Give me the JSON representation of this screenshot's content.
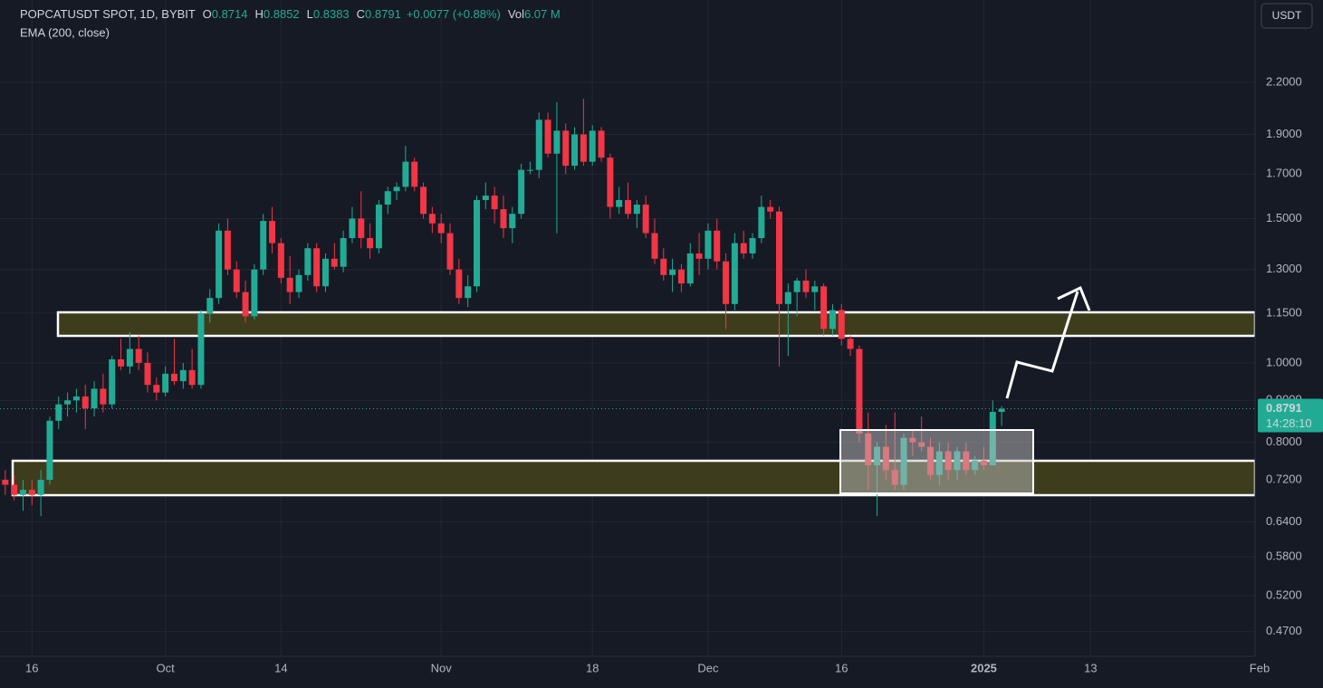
{
  "chart_data": {
    "type": "candlestick",
    "symbol": "POPCATUSDT SPOT, 1D, BYBIT",
    "ohlc_labels": [
      "O",
      "H",
      "L",
      "C"
    ],
    "change_label": "+0.0077 (+0.88%)",
    "volume_label": "Vol",
    "volume": "6.07 M",
    "indicator": "EMA (200, close)",
    "currency": "USDT",
    "countdown": "14:28:10",
    "up_color": "#22ab94",
    "down_color": "#f23645",
    "log_scale": true,
    "grid": true,
    "x": [
      "Sep 13",
      "Sep 14",
      "Sep 15",
      "Sep 16",
      "Sep 17",
      "Sep 18",
      "Sep 19",
      "Sep 20",
      "Sep 21",
      "Sep 22",
      "Sep 23",
      "Sep 24",
      "Sep 25",
      "Sep 26",
      "Sep 27",
      "Sep 28",
      "Sep 29",
      "Sep 30",
      "Oct 1",
      "Oct 2",
      "Oct 3",
      "Oct 4",
      "Oct 5",
      "Oct 6",
      "Oct 7",
      "Oct 8",
      "Oct 9",
      "Oct 10",
      "Oct 11",
      "Oct 12",
      "Oct 13",
      "Oct 14",
      "Oct 15",
      "Oct 16",
      "Oct 17",
      "Oct 18",
      "Oct 19",
      "Oct 20",
      "Oct 21",
      "Oct 22",
      "Oct 23",
      "Oct 24",
      "Oct 25",
      "Oct 26",
      "Oct 27",
      "Oct 28",
      "Oct 29",
      "Oct 30",
      "Oct 31",
      "Nov 1",
      "Nov 2",
      "Nov 3",
      "Nov 4",
      "Nov 5",
      "Nov 6",
      "Nov 7",
      "Nov 8",
      "Nov 9",
      "Nov 10",
      "Nov 11",
      "Nov 12",
      "Nov 13",
      "Nov 14",
      "Nov 15",
      "Nov 16",
      "Nov 17",
      "Nov 18",
      "Nov 19",
      "Nov 20",
      "Nov 21",
      "Nov 22",
      "Nov 23",
      "Nov 24",
      "Nov 25",
      "Nov 26",
      "Nov 27",
      "Nov 28",
      "Nov 29",
      "Nov 30",
      "Dec 1",
      "Dec 2",
      "Dec 3",
      "Dec 4",
      "Dec 5",
      "Dec 6",
      "Dec 7",
      "Dec 8",
      "Dec 9",
      "Dec 10",
      "Dec 11",
      "Dec 12",
      "Dec 13",
      "Dec 14",
      "Dec 15",
      "Dec 16",
      "Dec 17",
      "Dec 18",
      "Dec 19",
      "Dec 20",
      "Dec 21",
      "Dec 22",
      "Dec 23",
      "Dec 24",
      "Dec 25",
      "Dec 26",
      "Dec 27",
      "Dec 28",
      "Dec 29",
      "Dec 30",
      "Dec 31",
      "Jan 1",
      "Jan 2",
      "Jan 3"
    ],
    "open": [
      0.72,
      0.71,
      0.69,
      0.7,
      0.69,
      0.72,
      0.85,
      0.89,
      0.9,
      0.91,
      0.88,
      0.93,
      0.89,
      1.01,
      0.99,
      1.04,
      1.0,
      0.94,
      0.92,
      0.97,
      0.95,
      0.98,
      0.94,
      1.15,
      1.2,
      1.45,
      1.3,
      1.22,
      1.14,
      1.3,
      1.49,
      1.4,
      1.27,
      1.22,
      1.28,
      1.38,
      1.24,
      1.34,
      1.31,
      1.42,
      1.5,
      1.42,
      1.38,
      1.56,
      1.62,
      1.64,
      1.76,
      1.64,
      1.52,
      1.48,
      1.44,
      1.3,
      1.2,
      1.24,
      1.58,
      1.6,
      1.54,
      1.46,
      1.52,
      1.72,
      1.72,
      1.98,
      1.8,
      1.92,
      1.74,
      1.9,
      1.76,
      1.92,
      1.78,
      1.55,
      1.58,
      1.52,
      1.56,
      1.44,
      1.34,
      1.28,
      1.3,
      1.25,
      1.36,
      1.34,
      1.45,
      1.33,
      1.18,
      1.4,
      1.36,
      1.42,
      1.55,
      1.53,
      1.18,
      1.22,
      1.26,
      1.22,
      1.24,
      1.1,
      1.16,
      1.07,
      1.04,
      0.82,
      0.75,
      0.79,
      0.74,
      0.71,
      0.81,
      0.8,
      0.79,
      0.73,
      0.78,
      0.74,
      0.78,
      0.74,
      0.76,
      0.75,
      0.8714
    ],
    "high": [
      0.74,
      0.73,
      0.72,
      0.72,
      0.74,
      0.86,
      0.91,
      0.92,
      0.93,
      0.94,
      0.95,
      0.97,
      1.02,
      1.07,
      1.09,
      1.08,
      1.03,
      0.96,
      0.99,
      1.07,
      1.0,
      1.04,
      1.16,
      1.23,
      1.48,
      1.5,
      1.33,
      1.26,
      1.32,
      1.52,
      1.55,
      1.42,
      1.35,
      1.3,
      1.4,
      1.4,
      1.36,
      1.4,
      1.45,
      1.55,
      1.62,
      1.48,
      1.58,
      1.64,
      1.66,
      1.84,
      1.78,
      1.66,
      1.55,
      1.52,
      1.48,
      1.34,
      1.28,
      1.6,
      1.66,
      1.64,
      1.6,
      1.55,
      1.75,
      1.76,
      2.02,
      2.02,
      2.08,
      1.96,
      1.94,
      2.1,
      1.95,
      1.94,
      1.8,
      1.64,
      1.66,
      1.58,
      1.6,
      1.5,
      1.38,
      1.34,
      1.32,
      1.4,
      1.44,
      1.48,
      1.5,
      1.36,
      1.44,
      1.45,
      1.44,
      1.6,
      1.58,
      1.55,
      1.25,
      1.27,
      1.3,
      1.26,
      1.25,
      1.18,
      1.18,
      1.08,
      1.05,
      0.87,
      0.8,
      0.84,
      0.87,
      0.82,
      0.83,
      0.86,
      0.81,
      0.8,
      0.8,
      0.79,
      0.8,
      0.77,
      0.79,
      0.9,
      0.8852
    ],
    "low": [
      0.69,
      0.68,
      0.66,
      0.67,
      0.65,
      0.71,
      0.83,
      0.86,
      0.87,
      0.83,
      0.86,
      0.87,
      0.88,
      0.98,
      0.97,
      0.98,
      0.92,
      0.9,
      0.91,
      0.94,
      0.93,
      0.93,
      0.93,
      1.12,
      1.18,
      1.28,
      1.2,
      1.12,
      1.13,
      1.28,
      1.36,
      1.25,
      1.18,
      1.2,
      1.26,
      1.22,
      1.22,
      1.3,
      1.29,
      1.4,
      1.38,
      1.34,
      1.36,
      1.52,
      1.58,
      1.62,
      1.62,
      1.5,
      1.44,
      1.4,
      1.28,
      1.18,
      1.17,
      1.22,
      1.54,
      1.48,
      1.42,
      1.4,
      1.5,
      1.7,
      1.68,
      1.78,
      1.44,
      1.7,
      1.72,
      1.74,
      1.74,
      1.76,
      1.5,
      1.52,
      1.5,
      1.46,
      1.42,
      1.32,
      1.26,
      1.22,
      1.22,
      1.24,
      1.28,
      1.3,
      1.3,
      1.1,
      1.16,
      1.34,
      1.34,
      1.4,
      1.5,
      0.99,
      1.02,
      1.14,
      1.2,
      1.16,
      1.08,
      1.08,
      1.05,
      1.02,
      0.8,
      0.7,
      0.65,
      0.72,
      0.7,
      0.7,
      0.77,
      0.78,
      0.72,
      0.71,
      0.72,
      0.72,
      0.73,
      0.73,
      0.74,
      0.75,
      0.8383
    ],
    "close": [
      0.71,
      0.69,
      0.7,
      0.69,
      0.72,
      0.85,
      0.89,
      0.9,
      0.91,
      0.88,
      0.93,
      0.89,
      1.01,
      0.99,
      1.04,
      1.0,
      0.94,
      0.92,
      0.97,
      0.95,
      0.98,
      0.94,
      1.15,
      1.2,
      1.45,
      1.3,
      1.22,
      1.14,
      1.3,
      1.49,
      1.4,
      1.27,
      1.22,
      1.28,
      1.38,
      1.24,
      1.34,
      1.31,
      1.42,
      1.5,
      1.42,
      1.38,
      1.56,
      1.62,
      1.64,
      1.76,
      1.64,
      1.52,
      1.48,
      1.44,
      1.3,
      1.2,
      1.24,
      1.58,
      1.6,
      1.54,
      1.46,
      1.52,
      1.72,
      1.72,
      1.98,
      1.8,
      1.92,
      1.74,
      1.9,
      1.76,
      1.92,
      1.78,
      1.55,
      1.58,
      1.52,
      1.56,
      1.44,
      1.34,
      1.28,
      1.3,
      1.25,
      1.36,
      1.34,
      1.45,
      1.33,
      1.18,
      1.4,
      1.36,
      1.42,
      1.55,
      1.53,
      1.18,
      1.22,
      1.26,
      1.22,
      1.24,
      1.1,
      1.16,
      1.07,
      1.04,
      0.82,
      0.75,
      0.79,
      0.74,
      0.71,
      0.81,
      0.8,
      0.79,
      0.73,
      0.78,
      0.74,
      0.78,
      0.74,
      0.76,
      0.75,
      0.8714,
      0.8791
    ],
    "xlim": [
      "Sep 12",
      "Feb 1"
    ],
    "ylim": [
      0.4385,
      2.772
    ],
    "yticks": [
      {
        "value": 2.2,
        "label": "2.2000"
      },
      {
        "value": 1.9,
        "label": "1.9000"
      },
      {
        "value": 1.7,
        "label": "1.7000"
      },
      {
        "value": 1.5,
        "label": "1.5000"
      },
      {
        "value": 1.3,
        "label": "1.3000"
      },
      {
        "value": 1.15,
        "label": "1.1500"
      },
      {
        "value": 1.0,
        "label": "1.0000"
      },
      {
        "value": 0.9,
        "label": "0.9000"
      },
      {
        "value": 0.8,
        "label": "0.8000"
      },
      {
        "value": 0.72,
        "label": "0.7200"
      },
      {
        "value": 0.64,
        "label": "0.6400"
      },
      {
        "value": 0.58,
        "label": "0.5800"
      },
      {
        "value": 0.52,
        "label": "0.5200"
      },
      {
        "value": 0.47,
        "label": "0.4700"
      }
    ],
    "xticks": [
      {
        "value": "Sep 16",
        "label": "16"
      },
      {
        "value": "Oct 1",
        "label": "Oct"
      },
      {
        "value": "Oct 14",
        "label": "14"
      },
      {
        "value": "Nov 1",
        "label": "Nov"
      },
      {
        "value": "Nov 18",
        "label": "18"
      },
      {
        "value": "Dec 1",
        "label": "Dec"
      },
      {
        "value": "Dec 16",
        "label": "16"
      },
      {
        "value": "Jan 1",
        "label": "2025"
      },
      {
        "value": "Jan 13",
        "label": "13"
      },
      {
        "value": "Feb 1",
        "label": "Feb"
      }
    ]
  }
}
